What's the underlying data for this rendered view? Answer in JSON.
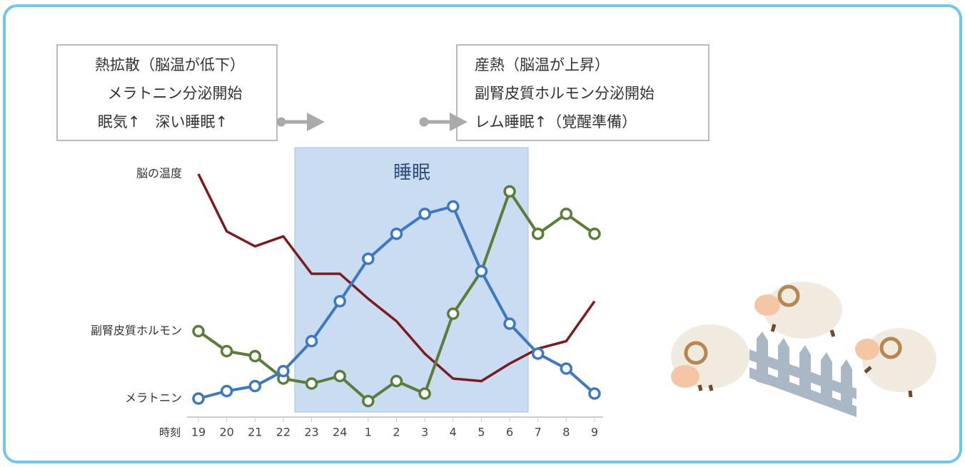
{
  "chart_data": {
    "type": "line",
    "x_label": "時刻",
    "categories": [
      "19",
      "20",
      "21",
      "22",
      "23",
      "24",
      "1",
      "2",
      "3",
      "4",
      "5",
      "6",
      "7",
      "8",
      "9"
    ],
    "ylim": [
      0,
      100
    ],
    "region_label": "睡眠",
    "series": [
      {
        "name": "脳の温度",
        "color": "#7b1c1c",
        "markers": false,
        "values": [
          96,
          73,
          67,
          71,
          56,
          56,
          46,
          37,
          24,
          14,
          13,
          20,
          26,
          29,
          45
        ]
      },
      {
        "name": "副腎皮質ホルモン",
        "color": "#5a7d3a",
        "markers": true,
        "values": [
          33,
          25,
          23,
          14,
          12,
          15,
          5,
          13,
          8,
          40,
          57,
          89,
          72,
          80,
          72
        ]
      },
      {
        "name": "メラトニン",
        "color": "#3d78c0",
        "markers": true,
        "values": [
          6,
          9,
          11,
          17,
          29,
          45,
          62,
          72,
          80,
          83,
          57,
          36,
          24,
          18,
          8
        ]
      }
    ],
    "left_box": [
      "熱拡散（脳温が低下）",
      "メラトニン分泌開始",
      "眠気↑　深い睡眠↑"
    ],
    "right_box": [
      "産熱（脳温が上昇）",
      "副腎皮質ホルモン分泌開始",
      "レム睡眠↑（覚醒準備）"
    ]
  }
}
